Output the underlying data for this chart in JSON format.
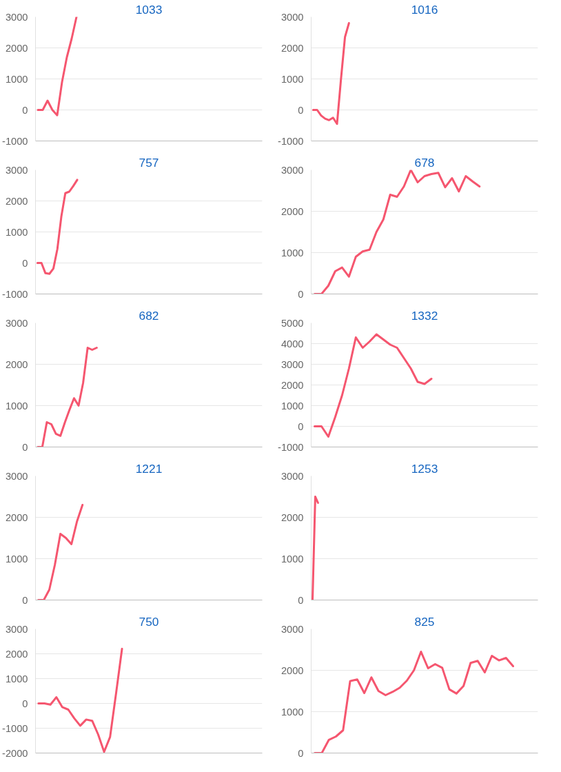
{
  "chart_data": [
    {
      "type": "line",
      "title": "1033",
      "categories": [
        null,
        null,
        null,
        null,
        null,
        null,
        null,
        null,
        null,
        null,
        null,
        null,
        null,
        null,
        null,
        null,
        null,
        null,
        null,
        null,
        null,
        null,
        null,
        null,
        null,
        null,
        null,
        null,
        null,
        null,
        null,
        null,
        null,
        null,
        null,
        null,
        null,
        null,
        null,
        null,
        null,
        null,
        null,
        null,
        null,
        null,
        null
      ],
      "series": [
        {
          "color": "#f5566f",
          "values": [
            0,
            0,
            300,
            0,
            -170,
            900,
            1700,
            2300,
            3000,
            null,
            null,
            null,
            null,
            null,
            null,
            null,
            null,
            null,
            null,
            null,
            null,
            null,
            null,
            null,
            null,
            null,
            null,
            null,
            null,
            null,
            null,
            null,
            null,
            null,
            null,
            null,
            null,
            null,
            null,
            null,
            null,
            null,
            null,
            null,
            null,
            null,
            null
          ]
        }
      ],
      "ylim": [
        -1000,
        3000
      ],
      "yticks": [
        -1000,
        0,
        1000,
        2000,
        3000
      ],
      "grid": "y",
      "tick_labels": "y"
    },
    {
      "type": "line",
      "title": "1016",
      "categories": [
        null,
        null,
        null,
        null,
        null,
        null,
        null,
        null,
        null,
        null,
        null,
        null,
        null,
        null,
        null,
        null,
        null,
        null,
        null,
        null,
        null,
        null,
        null,
        null,
        null,
        null,
        null,
        null,
        null,
        null,
        null,
        null,
        null,
        null,
        null,
        null,
        null,
        null,
        null,
        null,
        null,
        null,
        null,
        null,
        null,
        null,
        null,
        null,
        null,
        null,
        null,
        null,
        null,
        null,
        null,
        null,
        null
      ],
      "series": [
        {
          "color": "#f5566f",
          "values": [
            0,
            0,
            -180,
            -280,
            -330,
            -250,
            -450,
            1000,
            2350,
            2800,
            null,
            null,
            null,
            null,
            null,
            null,
            null,
            null,
            null,
            null,
            null,
            null,
            null,
            null,
            null,
            null,
            null,
            null,
            null,
            null,
            null,
            null,
            null,
            null,
            null,
            null,
            null,
            null,
            null,
            null,
            null,
            null,
            null,
            null,
            null,
            null,
            null,
            null,
            null,
            null,
            null,
            null,
            null,
            null,
            null,
            null,
            null
          ]
        }
      ],
      "ylim": [
        -1000,
        3000
      ],
      "yticks": [
        -1000,
        0,
        1000,
        2000,
        3000
      ],
      "grid": "y",
      "tick_labels": "y"
    },
    {
      "type": "line",
      "title": "757",
      "categories": [
        null,
        null,
        null,
        null,
        null,
        null,
        null,
        null,
        null,
        null,
        null,
        null,
        null,
        null,
        null,
        null,
        null,
        null,
        null,
        null,
        null,
        null,
        null,
        null,
        null,
        null,
        null,
        null,
        null,
        null,
        null,
        null,
        null,
        null,
        null,
        null,
        null,
        null,
        null,
        null,
        null,
        null,
        null,
        null,
        null,
        null,
        null,
        null,
        null,
        null,
        null,
        null,
        null,
        null,
        null,
        null,
        null
      ],
      "series": [
        {
          "color": "#f5566f",
          "values": [
            0,
            0,
            -330,
            -350,
            -180,
            450,
            1500,
            2250,
            2300,
            2480,
            2680,
            null,
            null,
            null,
            null,
            null,
            null,
            null,
            null,
            null,
            null,
            null,
            null,
            null,
            null,
            null,
            null,
            null,
            null,
            null,
            null,
            null,
            null,
            null,
            null,
            null,
            null,
            null,
            null,
            null,
            null,
            null,
            null,
            null,
            null,
            null,
            null,
            null,
            null,
            null,
            null,
            null,
            null,
            null,
            null,
            null,
            null
          ]
        }
      ],
      "ylim": [
        -1000,
        3000
      ],
      "yticks": [
        -1000,
        0,
        1000,
        2000,
        3000
      ],
      "grid": "y",
      "tick_labels": "y"
    },
    {
      "type": "line",
      "title": "678",
      "categories": [
        null,
        null,
        null,
        null,
        null,
        null,
        null,
        null,
        null,
        null,
        null,
        null,
        null,
        null,
        null,
        null,
        null,
        null,
        null,
        null,
        null,
        null,
        null,
        null,
        null,
        null,
        null,
        null,
        null,
        null,
        null,
        null,
        null
      ],
      "series": [
        {
          "color": "#f5566f",
          "values": [
            0,
            0,
            200,
            550,
            640,
            420,
            900,
            1030,
            1070,
            1500,
            1800,
            2400,
            2350,
            2600,
            3000,
            2700,
            2850,
            2900,
            2930,
            2580,
            2800,
            2480,
            2850,
            2720,
            2600,
            null,
            null,
            null,
            null,
            null,
            null,
            null,
            null
          ]
        }
      ],
      "ylim": [
        0,
        3000
      ],
      "yticks": [
        0,
        1000,
        2000,
        3000
      ],
      "grid": "y",
      "tick_labels": "y"
    },
    {
      "type": "line",
      "title": "682",
      "categories": [
        null,
        null,
        null,
        null,
        null,
        null,
        null,
        null,
        null,
        null,
        null,
        null,
        null,
        null,
        null,
        null,
        null,
        null,
        null,
        null,
        null,
        null,
        null,
        null,
        null,
        null,
        null,
        null,
        null,
        null,
        null,
        null,
        null,
        null,
        null,
        null,
        null,
        null,
        null,
        null,
        null,
        null,
        null,
        null,
        null,
        null,
        null,
        null,
        null,
        null
      ],
      "series": [
        {
          "color": "#f5566f",
          "values": [
            0,
            0,
            600,
            550,
            320,
            270,
            600,
            900,
            1180,
            1000,
            1550,
            2400,
            2350,
            2400,
            null,
            null,
            null,
            null,
            null,
            null,
            null,
            null,
            null,
            null,
            null,
            null,
            null,
            null,
            null,
            null,
            null,
            null,
            null,
            null,
            null,
            null,
            null,
            null,
            null,
            null,
            null,
            null,
            null,
            null,
            null,
            null,
            null,
            null,
            null,
            null
          ]
        }
      ],
      "ylim": [
        0,
        3000
      ],
      "yticks": [
        0,
        1000,
        2000,
        3000
      ],
      "grid": "y",
      "tick_labels": "y"
    },
    {
      "type": "line",
      "title": "1332",
      "categories": [
        null,
        null,
        null,
        null,
        null,
        null,
        null,
        null,
        null,
        null,
        null,
        null,
        null,
        null,
        null,
        null,
        null,
        null,
        null,
        null,
        null,
        null,
        null,
        null,
        null,
        null,
        null,
        null,
        null,
        null,
        null,
        null,
        null
      ],
      "series": [
        {
          "color": "#f5566f",
          "values": [
            0,
            0,
            -500,
            450,
            1500,
            2800,
            4300,
            3800,
            4100,
            4450,
            4200,
            3950,
            3800,
            3300,
            2800,
            2150,
            2050,
            2300,
            null,
            null,
            null,
            null,
            null,
            null,
            null,
            null,
            null,
            null,
            null,
            null,
            null,
            null,
            null
          ]
        }
      ],
      "ylim": [
        -1000,
        5000
      ],
      "yticks": [
        -1000,
        0,
        1000,
        2000,
        3000,
        4000,
        5000
      ],
      "grid": "y",
      "tick_labels": "y"
    },
    {
      "type": "line",
      "title": "1221",
      "categories": [
        null,
        null,
        null,
        null,
        null,
        null,
        null,
        null,
        null,
        null,
        null,
        null,
        null,
        null,
        null,
        null,
        null,
        null,
        null,
        null,
        null,
        null,
        null,
        null,
        null,
        null,
        null,
        null,
        null,
        null,
        null,
        null,
        null,
        null,
        null,
        null,
        null,
        null,
        null,
        null,
        null
      ],
      "series": [
        {
          "color": "#f5566f",
          "values": [
            0,
            0,
            250,
            850,
            1600,
            1500,
            1350,
            1900,
            2300,
            null,
            null,
            null,
            null,
            null,
            null,
            null,
            null,
            null,
            null,
            null,
            null,
            null,
            null,
            null,
            null,
            null,
            null,
            null,
            null,
            null,
            null,
            null,
            null,
            null,
            null,
            null,
            null,
            null,
            null,
            null,
            null
          ]
        }
      ],
      "ylim": [
        0,
        3000
      ],
      "yticks": [
        0,
        1000,
        2000,
        3000
      ],
      "grid": "y",
      "tick_labels": "y"
    },
    {
      "type": "line",
      "title": "1253",
      "categories": [
        null,
        null,
        null,
        null,
        null,
        null,
        null,
        null,
        null,
        null,
        null,
        null,
        null,
        null,
        null,
        null,
        null,
        null,
        null,
        null,
        null,
        null,
        null,
        null,
        null,
        null,
        null,
        null,
        null,
        null,
        null,
        null,
        null,
        null,
        null,
        null,
        null,
        null,
        null,
        null,
        null,
        null,
        null,
        null,
        null,
        null,
        null,
        null,
        null,
        null,
        null,
        null,
        null,
        null,
        null,
        null,
        null,
        null,
        null,
        null,
        null,
        null,
        null,
        null,
        null,
        null,
        null,
        null,
        null,
        null,
        null,
        null,
        null,
        null,
        null,
        null,
        null,
        null,
        null,
        null,
        null,
        null,
        null
      ],
      "series": [
        {
          "color": "#f5566f",
          "values": [
            0,
            2500,
            2350,
            null,
            null,
            null,
            null,
            null,
            null,
            null,
            null,
            null,
            null,
            null,
            null,
            null,
            null,
            null,
            null,
            null,
            null,
            null,
            null,
            null,
            null,
            null,
            null,
            null,
            null,
            null,
            null,
            null,
            null,
            null,
            null,
            null,
            null,
            null,
            null,
            null,
            null,
            null,
            null,
            null,
            null,
            null,
            null,
            null,
            null,
            null,
            null,
            null,
            null,
            null,
            null,
            null,
            null,
            null,
            null,
            null,
            null,
            null,
            null,
            null,
            null,
            null,
            null,
            null,
            null,
            null,
            null,
            null,
            null,
            null,
            null,
            null,
            null,
            null,
            null,
            null,
            null,
            null,
            null
          ]
        }
      ],
      "ylim": [
        0,
        3000
      ],
      "yticks": [
        0,
        1000,
        2000,
        3000
      ],
      "grid": "y",
      "tick_labels": "y"
    },
    {
      "type": "line",
      "title": "750",
      "categories": [
        null,
        null,
        null,
        null,
        null,
        null,
        null,
        null,
        null,
        null,
        null,
        null,
        null,
        null,
        null,
        null,
        null,
        null,
        null,
        null,
        null,
        null,
        null,
        null,
        null,
        null,
        null,
        null,
        null,
        null,
        null,
        null,
        null,
        null,
        null,
        null,
        null,
        null
      ],
      "series": [
        {
          "color": "#f5566f",
          "values": [
            0,
            0,
            -50,
            250,
            -150,
            -250,
            -600,
            -900,
            -650,
            -700,
            -1250,
            -1950,
            -1350,
            400,
            2200,
            null,
            null,
            null,
            null,
            null,
            null,
            null,
            null,
            null,
            null,
            null,
            null,
            null,
            null,
            null,
            null,
            null,
            null,
            null,
            null,
            null,
            null,
            null
          ]
        }
      ],
      "ylim": [
        -2000,
        3000
      ],
      "yticks": [
        -2000,
        -1000,
        0,
        1000,
        2000,
        3000
      ],
      "grid": "y",
      "tick_labels": "y"
    },
    {
      "type": "line",
      "title": "825",
      "categories": [
        null,
        null,
        null,
        null,
        null,
        null,
        null,
        null,
        null,
        null,
        null,
        null,
        null,
        null,
        null,
        null,
        null,
        null,
        null,
        null,
        null,
        null,
        null,
        null,
        null,
        null,
        null,
        null,
        null,
        null,
        null,
        null
      ],
      "series": [
        {
          "color": "#f5566f",
          "values": [
            0,
            0,
            320,
            400,
            550,
            1740,
            1780,
            1450,
            1830,
            1500,
            1400,
            1480,
            1580,
            1750,
            2000,
            2450,
            2050,
            2150,
            2060,
            1540,
            1440,
            1620,
            2180,
            2230,
            1950,
            2350,
            2240,
            2300,
            2100,
            null,
            null,
            null
          ]
        }
      ],
      "ylim": [
        0,
        3000
      ],
      "yticks": [
        0,
        1000,
        2000,
        3000
      ],
      "grid": "y",
      "tick_labels": "y"
    }
  ]
}
